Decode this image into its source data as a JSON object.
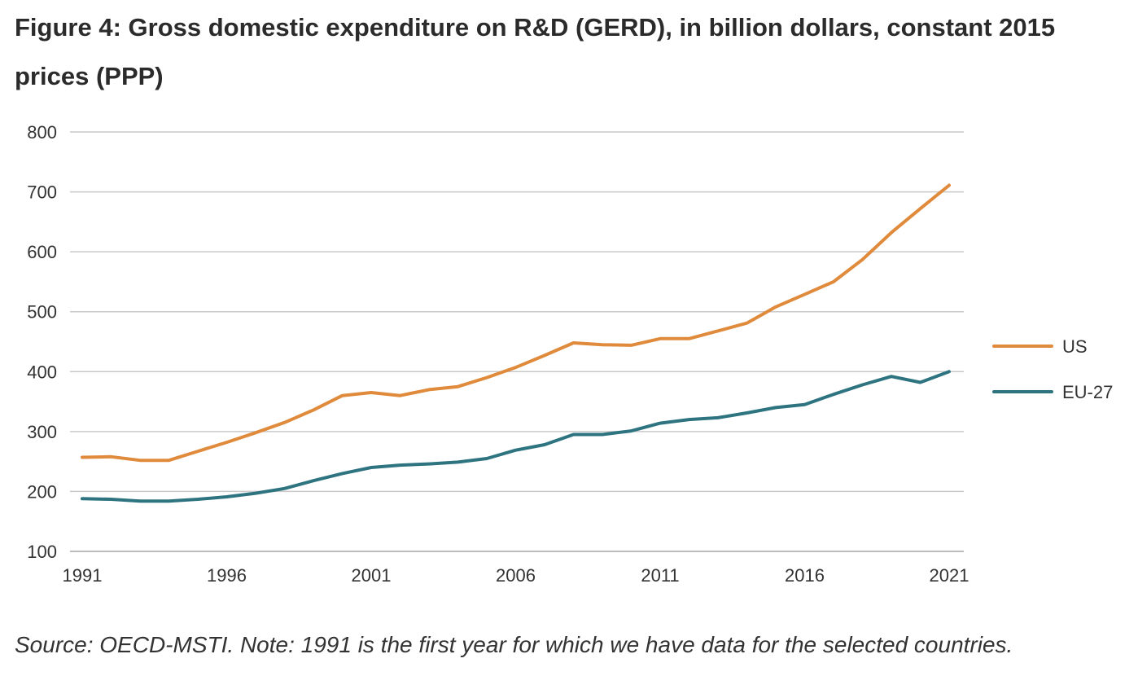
{
  "title": "Figure 4: Gross domestic expenditure on R&D (GERD), in billion dollars, constant 2015 prices (PPP)",
  "source": "Source: OECD-MSTI. Note: 1991 is the first year for which we have data for the selected countries.",
  "colors": {
    "US": "#e08a3c",
    "EU-27": "#2e7480",
    "grid": "#c9c9c9"
  },
  "chart_data": {
    "type": "line",
    "title": "Figure 4: Gross domestic expenditure on R&D (GERD), in billion dollars, constant 2015 prices (PPP)",
    "xlabel": "",
    "ylabel": "",
    "x": [
      1991,
      1992,
      1993,
      1994,
      1995,
      1996,
      1997,
      1998,
      1999,
      2000,
      2001,
      2002,
      2003,
      2004,
      2005,
      2006,
      2007,
      2008,
      2009,
      2010,
      2011,
      2012,
      2013,
      2014,
      2015,
      2016,
      2017,
      2018,
      2019,
      2020,
      2021
    ],
    "xticks": [
      "1991",
      "1996",
      "2001",
      "2006",
      "2011",
      "2016",
      "2021"
    ],
    "xlim": [
      1991,
      2021
    ],
    "ylim": [
      100,
      800
    ],
    "yticks": [
      "100",
      "200",
      "300",
      "400",
      "500",
      "600",
      "700",
      "800"
    ],
    "grid": true,
    "legend_position": "right",
    "series": [
      {
        "name": "US",
        "values": [
          257,
          258,
          252,
          252,
          267,
          282,
          298,
          315,
          336,
          360,
          365,
          360,
          370,
          375,
          390,
          407,
          427,
          448,
          445,
          444,
          455,
          455,
          468,
          481,
          508,
          529,
          550,
          587,
          632,
          672,
          711
        ]
      },
      {
        "name": "EU-27",
        "values": [
          188,
          187,
          184,
          184,
          187,
          191,
          197,
          205,
          218,
          230,
          240,
          244,
          246,
          249,
          255,
          269,
          278,
          295,
          295,
          301,
          314,
          320,
          323,
          331,
          340,
          345,
          362,
          378,
          392,
          382,
          400
        ]
      }
    ]
  }
}
